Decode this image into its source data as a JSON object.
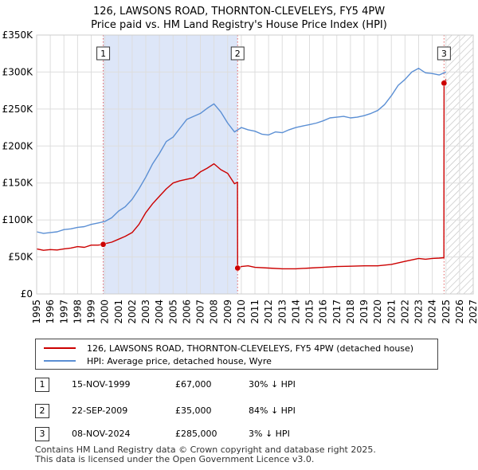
{
  "chart_data": {
    "type": "line",
    "title": "126, LAWSONS ROAD, THORNTON-CLEVELEYS, FY5 4PW",
    "subtitle": "Price paid vs. HM Land Registry's House Price Index (HPI)",
    "xlim": [
      1995,
      2027
    ],
    "ylim": [
      0,
      350000
    ],
    "x_ticks": [
      "1995",
      "1996",
      "1997",
      "1998",
      "1999",
      "2000",
      "2001",
      "2002",
      "2003",
      "2004",
      "2005",
      "2006",
      "2007",
      "2008",
      "2009",
      "2010",
      "2011",
      "2012",
      "2013",
      "2014",
      "2015",
      "2016",
      "2017",
      "2018",
      "2019",
      "2020",
      "2021",
      "2022",
      "2023",
      "2024",
      "2025",
      "2026",
      "2027"
    ],
    "y_ticks": [
      {
        "value": 0,
        "label": "£0"
      },
      {
        "value": 50000,
        "label": "£50K"
      },
      {
        "value": 100000,
        "label": "£100K"
      },
      {
        "value": 150000,
        "label": "£150K"
      },
      {
        "value": 200000,
        "label": "£200K"
      },
      {
        "value": 250000,
        "label": "£250K"
      },
      {
        "value": 300000,
        "label": "£300K"
      },
      {
        "value": 350000,
        "label": "£350K"
      }
    ],
    "grid": true,
    "shaded_ranges": [
      [
        1999.88,
        2009.73
      ]
    ],
    "hatched_from": 2025.0,
    "series": [
      {
        "name": "126, LAWSONS ROAD, THORNTON-CLEVELEYS, FY5 4PW (detached house)",
        "color": "#cc0000",
        "x": [
          1995,
          1995.5,
          1996,
          1996.5,
          1997,
          1997.5,
          1998,
          1998.5,
          1999,
          1999.5,
          1999.88,
          2000,
          2000.5,
          2001,
          2001.5,
          2002,
          2002.5,
          2003,
          2003.5,
          2004,
          2004.5,
          2005,
          2005.5,
          2006,
          2006.5,
          2007,
          2007.5,
          2008,
          2008.5,
          2009,
          2009.5,
          2009.72,
          2009.73,
          2010,
          2010.5,
          2011,
          2012,
          2013,
          2014,
          2015,
          2016,
          2017,
          2018,
          2019,
          2020,
          2021,
          2022,
          2023,
          2023.5,
          2024,
          2024.5,
          2024.85,
          2024.86,
          2025
        ],
        "values": [
          61000,
          59000,
          60000,
          59500,
          61000,
          62000,
          64000,
          63000,
          66000,
          66000,
          67000,
          68000,
          70000,
          74000,
          78000,
          83000,
          94000,
          110000,
          122000,
          132000,
          142000,
          150000,
          153000,
          155000,
          157000,
          165000,
          170000,
          176000,
          168000,
          163000,
          149000,
          151000,
          35000,
          37000,
          38000,
          36000,
          35000,
          34000,
          34000,
          35000,
          36000,
          37000,
          37500,
          38000,
          38000,
          40000,
          44000,
          48000,
          47000,
          48000,
          48500,
          49000,
          285000,
          290000
        ]
      },
      {
        "name": "HPI: Average price, detached house, Wyre",
        "color": "#5b8fd4",
        "x": [
          1995,
          1995.5,
          1996,
          1996.5,
          1997,
          1997.5,
          1998,
          1998.5,
          1999,
          1999.5,
          2000,
          2000.5,
          2001,
          2001.5,
          2002,
          2002.5,
          2003,
          2003.5,
          2004,
          2004.5,
          2005,
          2005.5,
          2006,
          2006.5,
          2007,
          2007.5,
          2008,
          2008.5,
          2009,
          2009.5,
          2010,
          2010.5,
          2011,
          2011.5,
          2012,
          2012.5,
          2013,
          2013.5,
          2014,
          2014.5,
          2015,
          2015.5,
          2016,
          2016.5,
          2017,
          2017.5,
          2018,
          2018.5,
          2019,
          2019.5,
          2020,
          2020.5,
          2021,
          2021.5,
          2022,
          2022.5,
          2023,
          2023.5,
          2024,
          2024.5,
          2025
        ],
        "values": [
          84000,
          82000,
          83000,
          84000,
          87000,
          88000,
          90000,
          91000,
          94000,
          96000,
          98000,
          103000,
          112000,
          118000,
          128000,
          142000,
          158000,
          176000,
          190000,
          206000,
          212000,
          224000,
          236000,
          240000,
          244000,
          251000,
          257000,
          246000,
          231000,
          219000,
          225000,
          222000,
          220000,
          216000,
          215000,
          219000,
          218000,
          222000,
          225000,
          227000,
          229000,
          231000,
          234000,
          238000,
          239000,
          240000,
          238000,
          239000,
          241000,
          244000,
          248000,
          256000,
          268000,
          282000,
          290000,
          300000,
          305000,
          299000,
          298000,
          296000,
          300000
        ]
      }
    ],
    "sales": [
      {
        "label": "1",
        "x": 1999.88,
        "value": 67000
      },
      {
        "label": "2",
        "x": 2009.73,
        "value": 35000
      },
      {
        "label": "3",
        "x": 2024.86,
        "value": 285000
      }
    ]
  },
  "legend": {
    "property_label": "126, LAWSONS ROAD, THORNTON-CLEVELEYS, FY5 4PW (detached house)",
    "hpi_label": "HPI: Average price, detached house, Wyre"
  },
  "transactions": [
    {
      "num": "1",
      "date": "15-NOV-1999",
      "price": "£67,000",
      "hpi": "30% ↓ HPI"
    },
    {
      "num": "2",
      "date": "22-SEP-2009",
      "price": "£35,000",
      "hpi": "84% ↓ HPI"
    },
    {
      "num": "3",
      "date": "08-NOV-2024",
      "price": "£285,000",
      "hpi": "3% ↓ HPI"
    }
  ],
  "footer": {
    "line1": "Contains HM Land Registry data © Crown copyright and database right 2025.",
    "line2": "This data is licensed under the Open Government Licence v3.0."
  },
  "colors": {
    "property": "#cc0000",
    "hpi": "#5b8fd4",
    "shade": "#dde6f8",
    "grid": "#dddddd"
  }
}
